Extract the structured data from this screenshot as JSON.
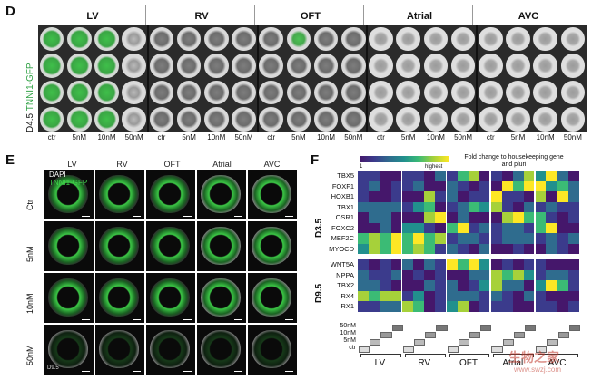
{
  "panel_d": {
    "letter": "D",
    "side_label_stage": "D4.5",
    "side_label_marker": "TNNI1-GFP",
    "groups": [
      "LV",
      "RV",
      "OFT",
      "Atrial",
      "AVC"
    ],
    "doses": [
      "ctr",
      "5nM",
      "10nM",
      "50nM"
    ],
    "marker_color": "#2ea043"
  },
  "panel_e": {
    "letter": "E",
    "legend_dapi": "DAPI",
    "legend_gfp": "TNNI1-GFP",
    "groups": [
      "LV",
      "RV",
      "OFT",
      "Atrial",
      "AVC"
    ],
    "rows": [
      "Ctr",
      "5nM",
      "10nM",
      "50nM"
    ],
    "stage_label": "D9.5"
  },
  "panel_f": {
    "letter": "F",
    "colorbar_low": "1",
    "colorbar_high": "highest",
    "colorbar_title": "Fold change to housekeeping gene and pluri",
    "stage_d35": "D3.5",
    "stage_d95": "D9.5",
    "genes_d35": [
      "TBX5",
      "FOXF1",
      "HOXB1",
      "TBX1",
      "OSR1",
      "FOXC2",
      "MEF2C",
      "MYOCD"
    ],
    "genes_d95": [
      "WNT5A",
      "NPPA",
      "TBX2",
      "IRX4",
      "IRX1"
    ],
    "dose_rows": [
      "50nM",
      "10nM",
      "5nM",
      "ctr"
    ],
    "groups": [
      "LV",
      "RV",
      "OFT",
      "Atrial",
      "AVC"
    ]
  },
  "watermark": {
    "site_cn": "生物之家",
    "site_url": "www.swzj.com"
  }
}
